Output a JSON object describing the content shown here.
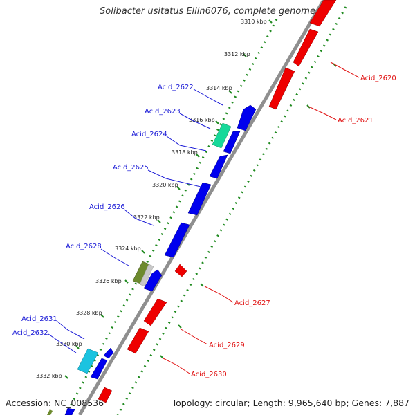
{
  "title": "Solibacter usitatus Ellin6076, complete genome",
  "footer": {
    "accession": "Accession: NC_008536",
    "topology": "Topology: circular; Length: 9,965,640 bp; Genes: 7,887"
  },
  "colors": {
    "backbone": "#8f8f8f",
    "forward_cds": "#0000ee",
    "reverse_cds": "#ee0000",
    "rna_teal": "#17d99a",
    "rna_olive": "#6d8a2e",
    "rna_cyan": "#1bc3e0",
    "gc_dots": "#1f8a1f",
    "forward_label": "#1a1ad6",
    "reverse_label": "#e01010"
  },
  "kbp_ticks": [
    "3310 kbp",
    "3312 kbp",
    "3314 kbp",
    "3316 kbp",
    "3318 kbp",
    "3320 kbp",
    "3322 kbp",
    "3324 kbp",
    "3326 kbp",
    "3328 kbp",
    "3330 kbp",
    "3332 kbp"
  ],
  "forward_labels": [
    "Acid_2622",
    "Acid_2623",
    "Acid_2624",
    "Acid_2625",
    "Acid_2626",
    "Acid_2628",
    "Acid_2631",
    "Acid_2632"
  ],
  "reverse_labels": [
    "Acid_2620",
    "Acid_2621",
    "Acid_2627",
    "Acid_2629",
    "Acid_2630"
  ]
}
